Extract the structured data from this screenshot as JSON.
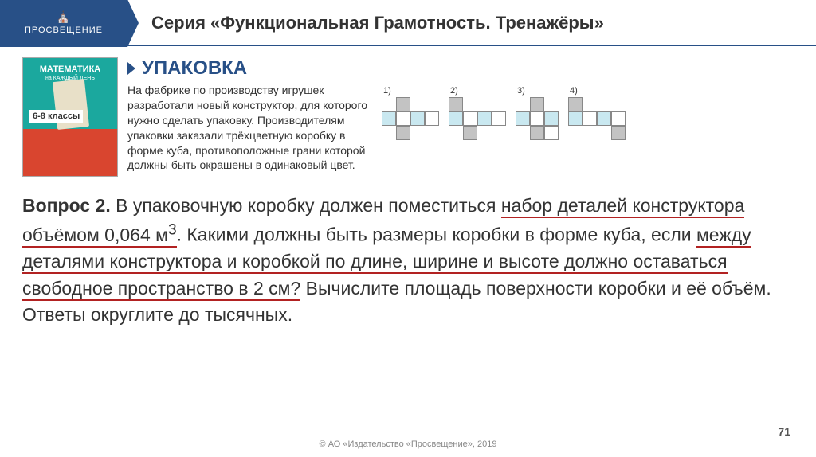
{
  "logo": {
    "text": "ПРОСВЕЩЕНИЕ",
    "icon": "⛪"
  },
  "header": {
    "title": "Серия «Функциональная Грамотность. Тренажёры»"
  },
  "book": {
    "title": "МАТЕМАТИКА",
    "sub": "на КАЖДЫЙ ДЕНЬ",
    "grade": "6-8\nклассы"
  },
  "section": {
    "title": "УПАКОВКА"
  },
  "intro": "На фабрике по производству игрушек разработали новый конструктор, для которого нужно сделать упаковку. Производителям упаковки заказали трёхцветную коробку в форме куба, противоположные грани которой должны быть окрашены в одинаковый цвет.",
  "nets": {
    "labels": [
      "1)",
      "2)",
      "3)",
      "4)"
    ],
    "n1": {
      "cols": 4,
      "cells": [
        "e",
        "g",
        "e",
        "e",
        "b",
        "w",
        "b",
        "w",
        "e",
        "g",
        "e",
        "e"
      ]
    },
    "n2": {
      "cols": 4,
      "cells": [
        "g",
        "e",
        "e",
        "e",
        "b",
        "w",
        "b",
        "w",
        "e",
        "g",
        "e",
        "e"
      ]
    },
    "n3": {
      "cols": 3,
      "cells": [
        "e",
        "g",
        "e",
        "b",
        "w",
        "b",
        "e",
        "g",
        "w"
      ]
    },
    "n4": {
      "cols": 4,
      "cells": [
        "g",
        "e",
        "e",
        "e",
        "b",
        "w",
        "b",
        "w",
        "e",
        "e",
        "e",
        "g"
      ]
    }
  },
  "question": {
    "label": "Вопрос 2.",
    "t1": " В упаковочную коробку должен поместиться ",
    "u1": "набор деталей конструктора объёмом 0,064 м",
    "sup": "3",
    "t2": ". Какими должны быть размеры коробки в форме куба, если ",
    "u2": "между деталями конструктора и коробкой по длине, ширине и высоте должно оставаться свободное пространство в 2 см?",
    "t3": " Вычислите площадь поверхности коробки и её объём. Ответы округлите до тысячных."
  },
  "footer": "© АО «Издательство «Просвещение», 2019",
  "page": "71"
}
